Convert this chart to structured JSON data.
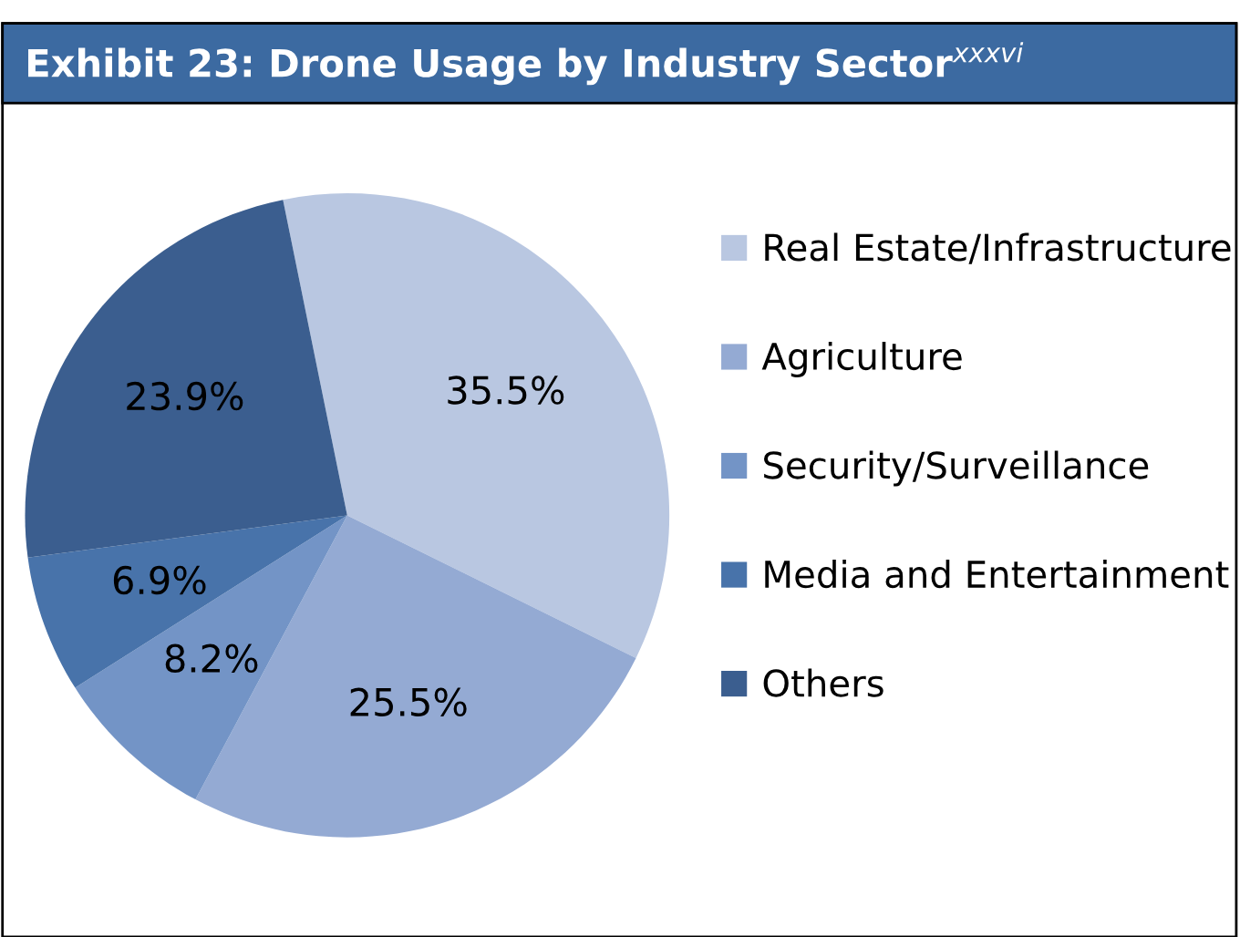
{
  "chart_data": {
    "type": "pie",
    "title": "Exhibit 23: Drone Usage by Industry Sector$^{xxxvi}$",
    "categories": [
      "Real Estate/Infrastructure",
      "Agriculture",
      "Security/Surveillance",
      "Media and Entertainment",
      "Others"
    ],
    "values": [
      35.5,
      25.5,
      8.2,
      6.9,
      23.9
    ],
    "colors": [
      "#b9c7e1",
      "#94aad3",
      "#7394c6",
      "#4873aa",
      "#3b5e8f"
    ],
    "value_labels": [
      "35.5%",
      "25.5%",
      "8.2%",
      "6.9%",
      "23.9%"
    ],
    "legend": "right"
  }
}
